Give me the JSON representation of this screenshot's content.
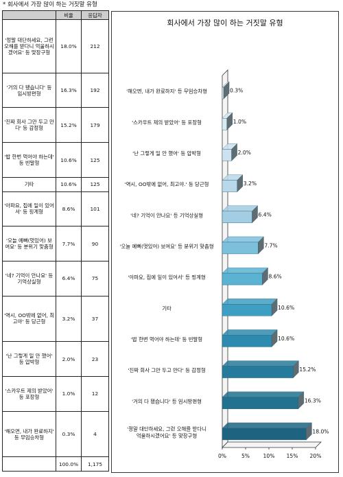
{
  "header": {
    "title": "* 회사에서 가장 많이 하는 거짓말 유형"
  },
  "table": {
    "columns": [
      "",
      "비율",
      "응답자"
    ],
    "rows": [
      {
        "label": "'정말 대단하세요, 그런 오해를 받다니 억울하시겠어요' 등 맞장구형",
        "pct": "18.0%",
        "n": "212"
      },
      {
        "label": "'거의 다 됐습니다' 등 임시방편형",
        "pct": "16.3%",
        "n": "192"
      },
      {
        "label": "'진짜 회사 그만 두고 만다' 등 감정형",
        "pct": "15.2%",
        "n": "179"
      },
      {
        "label": "'밥 한번 먹어야 하는데' 등 빈말형",
        "pct": "10.6%",
        "n": "125"
      },
      {
        "label": "기타",
        "pct": "10.6%",
        "n": "125"
      },
      {
        "label": "'아파요, 집에 일이 있어서' 등 핑계형",
        "pct": "8.6%",
        "n": "101"
      },
      {
        "label": "'오늘 예뻐(멋있어) 보여요' 등 분위기 맞춤형",
        "pct": "7.7%",
        "n": "90"
      },
      {
        "label": "'네? 기억이 안나요' 등 기억상실형",
        "pct": "6.4%",
        "n": "75"
      },
      {
        "label": "'역시, OO밖에 없어, 최고야' 등 당근형",
        "pct": "3.2%",
        "n": "37"
      },
      {
        "label": "'난 그렇게 일 안 했어' 등 압박형",
        "pct": "2.0%",
        "n": "23"
      },
      {
        "label": "'스카우트 제의 받았어' 등 포장형",
        "pct": "1.0%",
        "n": "12"
      },
      {
        "label": "'해오면, 내가 완료하지' 등 무임승차형",
        "pct": "0.3%",
        "n": "4"
      }
    ],
    "total": {
      "label": "",
      "pct": "100.0%",
      "n": "1,175"
    }
  },
  "chart_data": {
    "type": "bar",
    "orientation": "horizontal",
    "title": "회사에서 가장 많이 하는 거짓말 유형",
    "categories": [
      "'해오면, 내가 완료하지' 등 무임승차형",
      "'스카우트 제의 받았어' 등 포장형",
      "'난 그렇게 일 안 했어' 등 압박형",
      "'역시, OO밖에 없어, 최고야.' 등 당근형",
      "'네? 기억이 안나요' 등 기억상실형",
      "'오늘 예뻐(멋있어) 보여요' 등 분위기 맞춤형",
      "'아파요, 집에 일이 있어서' 등 핑계형",
      "기타",
      "'밥 한번 먹어야 하는데' 등 빈말형",
      "'진짜 회사 그만 두고 만다' 등 감정형",
      "'거의 다 됐습니다' 등 임시방편형",
      "'정말 대단하세요, 그런 오해를 받다니 억울하시겠어요' 등 맞장구형"
    ],
    "values": [
      0.3,
      1.0,
      2.0,
      3.2,
      6.4,
      7.7,
      8.6,
      10.6,
      10.6,
      15.2,
      16.3,
      18.0
    ],
    "value_labels": [
      "0.3%",
      "1.0%",
      "2.0%",
      "3.2%",
      "6.4%",
      "7.7%",
      "8.6%",
      "10.6%",
      "10.6%",
      "15.2%",
      "16.3%",
      "18.0%"
    ],
    "xlim": [
      0,
      20
    ],
    "xticks": [
      "0%",
      "5%",
      "10%",
      "15%",
      "20%"
    ],
    "colors": [
      "#e4eef4",
      "#dbe9f2",
      "#cde2ef",
      "#b9d9ea",
      "#a2cde3",
      "#7dc0dc",
      "#5ab3d2",
      "#3f9fc3",
      "#2e8bb0",
      "#267b9c",
      "#21718f",
      "#1e6480"
    ],
    "grid": false,
    "legend": "none"
  }
}
